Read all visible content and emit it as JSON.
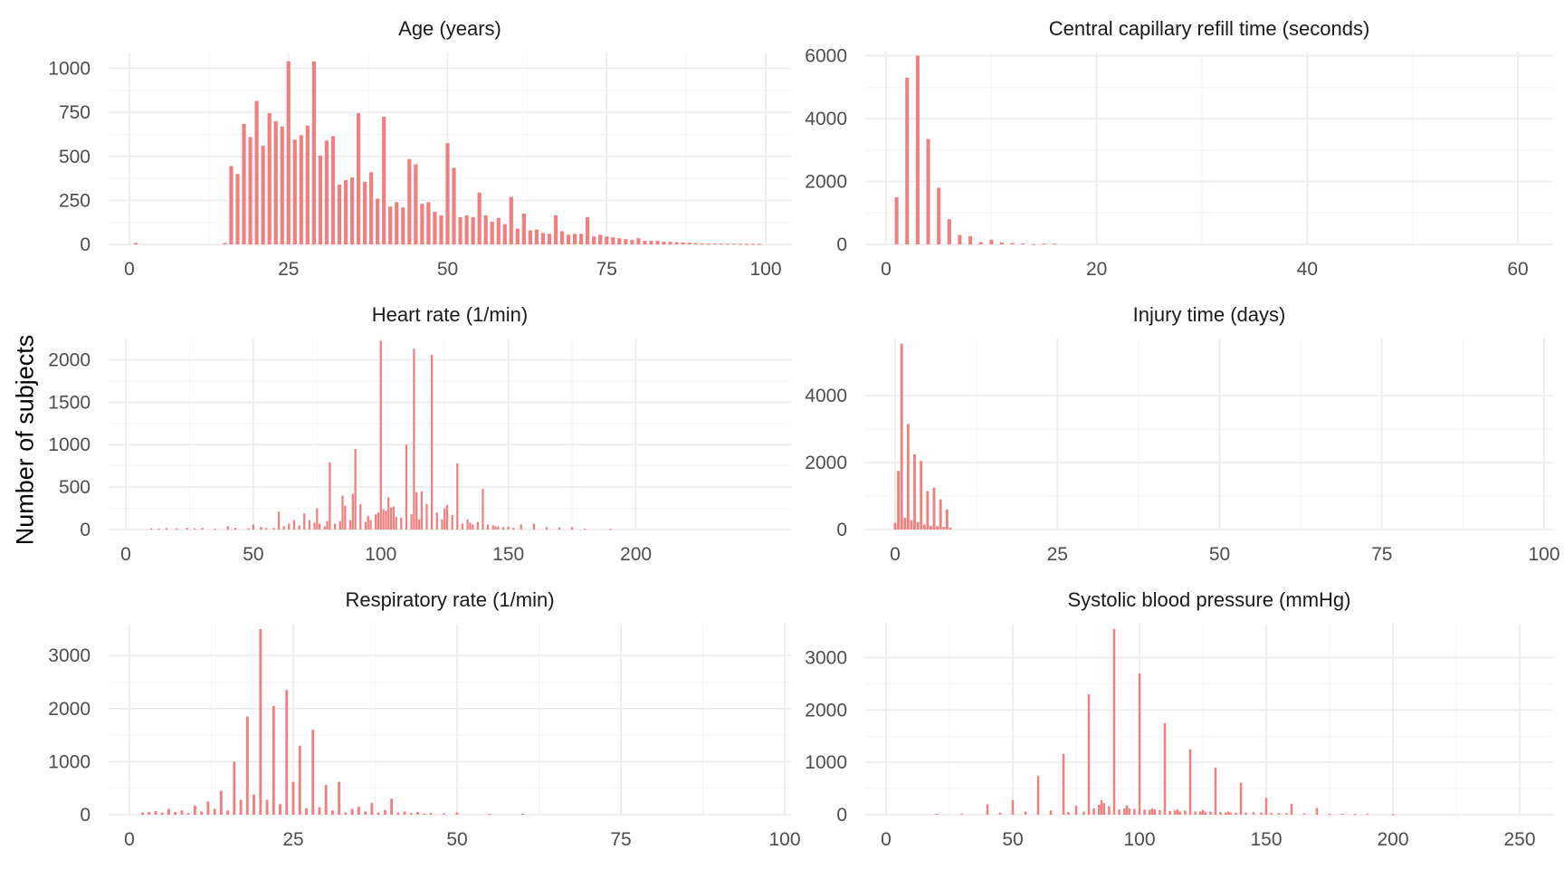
{
  "y_axis_label": "Number of subjects",
  "colors": {
    "bar": "#F08080",
    "grid": "#EBEBEB",
    "text": "#4D4D4D"
  },
  "chart_data": [
    {
      "type": "bar",
      "title": "Age (years)",
      "xlim": [
        0,
        100
      ],
      "ylim": [
        0,
        1090
      ],
      "xticks": [
        0,
        25,
        50,
        75,
        100
      ],
      "yticks": [
        0,
        250,
        500,
        750,
        1000
      ],
      "bar_width": 0.6,
      "x": [
        1,
        15,
        16,
        17,
        18,
        19,
        20,
        21,
        22,
        23,
        24,
        25,
        26,
        27,
        28,
        29,
        30,
        31,
        32,
        33,
        34,
        35,
        36,
        37,
        38,
        39,
        40,
        41,
        42,
        43,
        44,
        45,
        46,
        47,
        48,
        49,
        50,
        51,
        52,
        53,
        54,
        55,
        56,
        57,
        58,
        59,
        60,
        61,
        62,
        63,
        64,
        65,
        66,
        67,
        68,
        69,
        70,
        71,
        72,
        73,
        74,
        75,
        76,
        77,
        78,
        79,
        80,
        81,
        82,
        83,
        84,
        85,
        86,
        87,
        88,
        89,
        90,
        91,
        92,
        93,
        94,
        95,
        96,
        97,
        98,
        99
      ],
      "values": [
        8,
        8,
        445,
        400,
        685,
        610,
        815,
        560,
        745,
        700,
        670,
        1040,
        595,
        620,
        675,
        1040,
        505,
        590,
        615,
        340,
        365,
        380,
        745,
        355,
        410,
        260,
        725,
        215,
        240,
        210,
        485,
        455,
        230,
        240,
        185,
        165,
        575,
        435,
        155,
        165,
        155,
        295,
        165,
        130,
        150,
        115,
        270,
        90,
        175,
        80,
        85,
        65,
        60,
        165,
        75,
        55,
        60,
        60,
        155,
        45,
        55,
        45,
        40,
        35,
        30,
        25,
        35,
        20,
        20,
        20,
        15,
        15,
        12,
        12,
        10,
        8,
        6,
        5,
        5,
        5,
        4,
        4,
        3,
        3,
        3,
        3
      ]
    },
    {
      "type": "bar",
      "title": "Central capillary refill time (seconds)",
      "xlim": [
        0,
        60
      ],
      "ylim": [
        0,
        6100
      ],
      "xticks": [
        0,
        20,
        40,
        60
      ],
      "yticks": [
        0,
        2000,
        4000,
        6000
      ],
      "bar_width": 0.35,
      "x": [
        1,
        2,
        3,
        4,
        5,
        6,
        7,
        8,
        9,
        10,
        11,
        12,
        13,
        14,
        15,
        16
      ],
      "values": [
        1500,
        5300,
        6000,
        3350,
        1800,
        800,
        300,
        260,
        70,
        150,
        60,
        40,
        30,
        15,
        25,
        20
      ]
    },
    {
      "type": "bar",
      "title": "Heart rate (1/min)",
      "xlim": [
        0,
        225
      ],
      "ylim": [
        0,
        2250
      ],
      "xticks": [
        0,
        50,
        100,
        150,
        200
      ],
      "yticks": [
        0,
        500,
        1000,
        1500,
        2000
      ],
      "bar_width": 0.8,
      "x": [
        10,
        13,
        16,
        20,
        24,
        27,
        30,
        35,
        40,
        43,
        48,
        50,
        53,
        55,
        58,
        60,
        62,
        64,
        66,
        68,
        70,
        72,
        74,
        75,
        76,
        78,
        79,
        80,
        82,
        84,
        85,
        86,
        88,
        89,
        90,
        92,
        94,
        95,
        96,
        98,
        99,
        100,
        101,
        102,
        103,
        104,
        105,
        106,
        108,
        110,
        112,
        113,
        114,
        115,
        116,
        118,
        120,
        122,
        124,
        125,
        126,
        128,
        130,
        132,
        134,
        135,
        136,
        138,
        140,
        142,
        144,
        145,
        146,
        148,
        150,
        152,
        155,
        160,
        165,
        170,
        175,
        180,
        190
      ],
      "values": [
        15,
        12,
        18,
        15,
        20,
        15,
        20,
        10,
        40,
        20,
        15,
        60,
        30,
        20,
        20,
        210,
        40,
        70,
        110,
        50,
        190,
        110,
        80,
        250,
        70,
        40,
        100,
        790,
        70,
        100,
        400,
        280,
        110,
        420,
        950,
        300,
        90,
        160,
        110,
        180,
        200,
        2220,
        240,
        220,
        380,
        260,
        270,
        150,
        140,
        1000,
        180,
        2130,
        440,
        120,
        450,
        300,
        2060,
        200,
        120,
        250,
        290,
        170,
        780,
        70,
        120,
        80,
        60,
        90,
        480,
        60,
        50,
        40,
        35,
        30,
        35,
        20,
        60,
        70,
        30,
        25,
        30,
        10,
        10
      ]
    },
    {
      "type": "bar",
      "title": "Injury time (days)",
      "xlim": [
        0,
        100
      ],
      "ylim": [
        0,
        5700
      ],
      "xticks": [
        0,
        25,
        50,
        75,
        100
      ],
      "yticks": [
        0,
        2000,
        4000
      ],
      "bar_width": 0.4,
      "x": [
        0,
        0.5,
        1,
        1.5,
        2,
        2.5,
        3,
        3.5,
        4,
        4.5,
        5,
        5.5,
        6,
        6.5,
        7,
        7.5,
        8,
        8.5
      ],
      "values": [
        200,
        1750,
        5550,
        350,
        3150,
        280,
        2250,
        220,
        2050,
        150,
        1150,
        110,
        1250,
        100,
        900,
        80,
        600,
        60
      ]
    },
    {
      "type": "bar",
      "title": "Respiratory rate (1/min)",
      "xlim": [
        0,
        100
      ],
      "ylim": [
        0,
        3600
      ],
      "xticks": [
        0,
        25,
        50,
        75,
        100
      ],
      "yticks": [
        0,
        1000,
        2000,
        3000
      ],
      "bar_width": 0.4,
      "x": [
        2,
        3,
        4,
        5,
        6,
        7,
        8,
        9,
        10,
        11,
        12,
        13,
        14,
        15,
        16,
        17,
        18,
        19,
        20,
        21,
        22,
        23,
        24,
        25,
        26,
        27,
        28,
        29,
        30,
        31,
        32,
        33,
        34,
        35,
        36,
        37,
        38,
        39,
        40,
        41,
        42,
        43,
        44,
        45,
        46,
        48,
        50,
        55,
        60
      ],
      "values": [
        40,
        50,
        70,
        40,
        110,
        50,
        80,
        30,
        170,
        60,
        250,
        110,
        450,
        80,
        1000,
        280,
        1850,
        380,
        3500,
        280,
        2050,
        200,
        2350,
        620,
        1300,
        120,
        1600,
        140,
        560,
        80,
        620,
        40,
        110,
        150,
        60,
        220,
        40,
        90,
        300,
        40,
        60,
        30,
        50,
        20,
        30,
        25,
        45,
        15,
        20
      ]
    },
    {
      "type": "bar",
      "title": "Systolic blood pressure (mmHg)",
      "xlim": [
        0,
        250
      ],
      "ylim": [
        0,
        3650
      ],
      "xticks": [
        0,
        50,
        100,
        150,
        200,
        250
      ],
      "yticks": [
        0,
        1000,
        2000,
        3000
      ],
      "bar_width": 0.9,
      "x": [
        20,
        30,
        40,
        45,
        50,
        55,
        60,
        65,
        70,
        72,
        75,
        78,
        80,
        82,
        84,
        85,
        86,
        88,
        90,
        92,
        94,
        95,
        96,
        98,
        100,
        102,
        104,
        105,
        106,
        108,
        110,
        112,
        114,
        115,
        116,
        118,
        120,
        122,
        124,
        125,
        126,
        128,
        130,
        132,
        134,
        135,
        136,
        138,
        140,
        142,
        145,
        148,
        150,
        152,
        155,
        158,
        160,
        165,
        170,
        175,
        180,
        185,
        190,
        200
      ],
      "values": [
        20,
        20,
        200,
        40,
        280,
        60,
        740,
        80,
        1160,
        50,
        170,
        60,
        2300,
        120,
        190,
        280,
        220,
        160,
        3550,
        100,
        120,
        180,
        120,
        110,
        2700,
        100,
        90,
        120,
        100,
        90,
        1750,
        70,
        80,
        100,
        60,
        80,
        1250,
        60,
        60,
        90,
        50,
        60,
        900,
        50,
        40,
        60,
        40,
        40,
        610,
        40,
        50,
        40,
        320,
        35,
        30,
        30,
        210,
        25,
        130,
        20,
        20,
        15,
        20,
        10
      ]
    }
  ]
}
